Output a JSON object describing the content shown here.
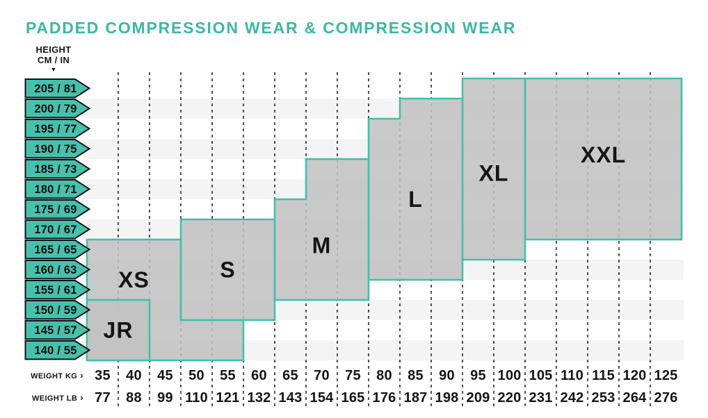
{
  "title": "PADDED COMPRESSION WEAR & COMPRESSION WEAR",
  "colors": {
    "teal": "#3bb8a5",
    "tag_fill": "#46c1ad",
    "tag_stroke": "#121212",
    "region_stroke": "#3fc0ab",
    "region_fill": "rgba(193,193,193,0.88)",
    "stripe": "#f4f4f4",
    "grid": "#4d4d4d"
  },
  "y_axis_header": {
    "line1": "HEIGHT",
    "line2": "CM / IN",
    "caret": "▼"
  },
  "x_axis_labels": {
    "kg_label": "WEIGHT KG",
    "lb_label": "WEIGHT LB",
    "arrow": "›"
  },
  "chart_data": {
    "type": "heatmap",
    "title": "PADDED COMPRESSION WEAR & COMPRESSION WEAR",
    "x_axis": {
      "label_kg": "WEIGHT KG",
      "label_lb": "WEIGHT LB",
      "kg_values": [
        35,
        40,
        45,
        50,
        55,
        60,
        65,
        70,
        75,
        80,
        85,
        90,
        95,
        100,
        105,
        110,
        115,
        120,
        125
      ],
      "lb_values": [
        77,
        88,
        99,
        110,
        121,
        132,
        143,
        154,
        165,
        176,
        187,
        198,
        209,
        220,
        231,
        242,
        253,
        264,
        276
      ],
      "kg_range": [
        35,
        130
      ],
      "step_kg": 5
    },
    "y_axis": {
      "label": "HEIGHT CM / IN",
      "labels": [
        "205 / 81",
        "200 / 79",
        "195 / 77",
        "190 / 75",
        "185 / 73",
        "180 / 71",
        "175 / 69",
        "170 / 67",
        "165 / 65",
        "160 / 63",
        "155 / 61",
        "150 / 59",
        "145 / 57",
        "140 / 55"
      ],
      "cm_range": [
        140,
        210
      ],
      "step_cm": 5
    },
    "grid": "vertical-dashed",
    "legend_position": "none",
    "regions": [
      {
        "name": "xs",
        "label": "XS",
        "polygon_kg_cm": [
          [
            35,
            170
          ],
          [
            50,
            170
          ],
          [
            50,
            150
          ],
          [
            60,
            150
          ],
          [
            60,
            140
          ],
          [
            35,
            140
          ]
        ],
        "label_pos": {
          "kg": 42.5,
          "cm": 160
        }
      },
      {
        "name": "s",
        "label": "S",
        "polygon_kg_cm": [
          [
            50,
            175
          ],
          [
            65,
            175
          ],
          [
            65,
            150
          ],
          [
            50,
            150
          ]
        ],
        "label_pos": {
          "kg": 57.5,
          "cm": 162.5
        }
      },
      {
        "name": "m",
        "label": "M",
        "polygon_kg_cm": [
          [
            65,
            180
          ],
          [
            70,
            180
          ],
          [
            70,
            190
          ],
          [
            80,
            190
          ],
          [
            80,
            155
          ],
          [
            65,
            155
          ]
        ],
        "label_pos": {
          "kg": 72.5,
          "cm": 168.5
        }
      },
      {
        "name": "l",
        "label": "L",
        "polygon_kg_cm": [
          [
            80,
            200
          ],
          [
            85,
            200
          ],
          [
            85,
            205
          ],
          [
            95,
            205
          ],
          [
            95,
            160
          ],
          [
            80,
            160
          ]
        ],
        "label_pos": {
          "kg": 87.5,
          "cm": 180
        }
      },
      {
        "name": "xl",
        "label": "XL",
        "polygon_kg_cm": [
          [
            95,
            210
          ],
          [
            105,
            210
          ],
          [
            105,
            165
          ],
          [
            95,
            165
          ]
        ],
        "label_pos": {
          "kg": 100,
          "cm": 186.5
        }
      },
      {
        "name": "xxl",
        "label": "XXL",
        "polygon_kg_cm": [
          [
            105,
            210
          ],
          [
            130,
            210
          ],
          [
            130,
            170
          ],
          [
            105,
            170
          ]
        ],
        "label_pos": {
          "kg": 117.5,
          "cm": 191
        }
      },
      {
        "name": "jr",
        "label": "JR",
        "polygon_kg_cm": [
          [
            35,
            155
          ],
          [
            45,
            155
          ],
          [
            45,
            140
          ],
          [
            35,
            140
          ]
        ],
        "label_pos": {
          "kg": 40,
          "cm": 147.5
        }
      }
    ]
  }
}
